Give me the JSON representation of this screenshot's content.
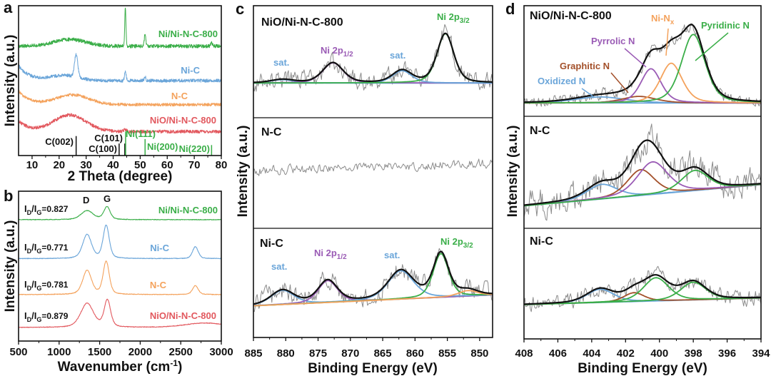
{
  "colors": {
    "green": "#3aae48",
    "blue": "#6aa5d9",
    "orange": "#f4a25c",
    "red": "#e2585e",
    "purple": "#9a5bb5",
    "brown": "#a3502a",
    "gray": "#8c8c8c",
    "black": "#111111"
  },
  "chart_data": [
    {
      "panel": "a",
      "type": "line",
      "xlabel": "2 Theta (degree)",
      "ylabel": "Intensity (a.u.)",
      "xlim": [
        5,
        80
      ],
      "ylim": [
        0,
        10
      ],
      "xticks": [
        10,
        20,
        30,
        40,
        50,
        60,
        70,
        80
      ],
      "series": [
        {
          "name": "Ni/Ni-N-C-800",
          "color": "#3aae48",
          "baseline": 7.3,
          "rise": 0.0,
          "noise": 0.25,
          "seed": 11,
          "peaks": [
            {
              "center": 24,
              "amp": 0.45,
              "width": 6
            },
            {
              "center": 44.5,
              "amp": 2.6,
              "width": 0.22
            },
            {
              "center": 51.8,
              "amp": 0.9,
              "width": 0.25
            },
            {
              "center": 76.4,
              "amp": 0.2,
              "width": 0.3
            }
          ]
        },
        {
          "name": "Ni-C",
          "color": "#6aa5d9",
          "baseline": 5.0,
          "rise": 1.0,
          "noise": 0.22,
          "seed": 23,
          "peaks": [
            {
              "center": 22,
              "amp": 0.35,
              "width": 5
            },
            {
              "center": 26.3,
              "amp": 1.5,
              "width": 0.6
            },
            {
              "center": 44.5,
              "amp": 0.6,
              "width": 0.3
            },
            {
              "center": 51.8,
              "amp": 0.25,
              "width": 0.3
            }
          ]
        },
        {
          "name": "N-C",
          "color": "#f4a25c",
          "baseline": 3.4,
          "rise": 0.9,
          "noise": 0.2,
          "seed": 37,
          "peaks": [
            {
              "center": 25,
              "amp": 0.65,
              "width": 6
            }
          ]
        },
        {
          "name": "NiO/Ni-N-C-800",
          "color": "#e2585e",
          "baseline": 1.6,
          "rise": 0.7,
          "noise": 0.22,
          "seed": 41,
          "peaks": [
            {
              "center": 24,
              "amp": 1.1,
              "width": 6
            },
            {
              "center": 44.5,
              "amp": 0.15,
              "width": 0.5
            }
          ]
        }
      ],
      "reference_lines": [
        {
          "label": "C(002)",
          "position": 26.3,
          "height": 1.3,
          "color": "#111111"
        },
        {
          "label": "C(100)",
          "position": 42.2,
          "height": 0.8,
          "color": "#111111"
        },
        {
          "label": "C(101)",
          "position": 44.3,
          "height": 0.8,
          "color": "#111111"
        },
        {
          "label": "Ni(111)",
          "position": 44.6,
          "height": 1.6,
          "color": "#3aae48"
        },
        {
          "label": "Ni(200)",
          "position": 51.8,
          "height": 1.1,
          "color": "#3aae48"
        },
        {
          "label": "Ni(220)",
          "position": 76.4,
          "height": 0.7,
          "color": "#3aae48"
        }
      ]
    },
    {
      "panel": "b",
      "type": "line",
      "xlabel": "Wavenumber (cm",
      "xlabel_sup": "-1",
      "xlabel_end": ")",
      "ylabel": "Intensity (a.u.)",
      "xlim": [
        500,
        3000
      ],
      "ylim": [
        0,
        10
      ],
      "xticks": [
        500,
        1000,
        1500,
        2000,
        2500,
        3000
      ],
      "band_labels": [
        "D",
        "G"
      ],
      "series": [
        {
          "name": "Ni/Ni-N-C-800",
          "ratio_label": "0.827",
          "color": "#3aae48",
          "baseline": 8.1,
          "noise": 0.04,
          "seed": 5,
          "peaks": [
            {
              "center": 1345,
              "amp": 0.6,
              "width": 75
            },
            {
              "center": 1590,
              "amp": 0.85,
              "width": 40
            }
          ]
        },
        {
          "name": "Ni-C",
          "ratio_label": "0.771",
          "color": "#6aa5d9",
          "baseline": 5.5,
          "noise": 0.04,
          "seed": 6,
          "peaks": [
            {
              "center": 1345,
              "amp": 1.6,
              "width": 55
            },
            {
              "center": 1580,
              "amp": 2.2,
              "width": 38
            },
            {
              "center": 2680,
              "amp": 0.8,
              "width": 35
            }
          ]
        },
        {
          "name": "N-C",
          "ratio_label": "0.781",
          "color": "#f4a25c",
          "baseline": 3.1,
          "noise": 0.04,
          "seed": 7,
          "peaks": [
            {
              "center": 1345,
              "amp": 1.6,
              "width": 55
            },
            {
              "center": 1580,
              "amp": 2.2,
              "width": 38
            },
            {
              "center": 2680,
              "amp": 0.6,
              "width": 35
            }
          ]
        },
        {
          "name": "NiO/Ni-N-C-800",
          "ratio_label": "0.879",
          "color": "#e2585e",
          "baseline": 0.9,
          "noise": 0.04,
          "seed": 8,
          "peaks": [
            {
              "center": 1345,
              "amp": 1.6,
              "width": 80
            },
            {
              "center": 1595,
              "amp": 1.8,
              "width": 40
            },
            {
              "center": 2800,
              "amp": 0.3,
              "width": 250
            }
          ]
        }
      ],
      "ratio_prefix": "I",
      "ratio_sub_d": "D",
      "ratio_sub_g": "G",
      "ratio_eq": "="
    },
    {
      "panel": "c",
      "type": "line",
      "xlabel": "Binding Energy (eV)",
      "ylabel": "Intensity (a.u.)",
      "xlim": [
        885,
        848
      ],
      "ylim": [
        0,
        10
      ],
      "xticks": [
        885,
        880,
        875,
        870,
        865,
        860,
        855,
        850
      ],
      "subplots": [
        {
          "name": "NiO/Ni-N-C-800",
          "background": [
            3.1,
            3.1
          ],
          "background_color": "#6aa5d9",
          "noise": 1.4,
          "seed": 101,
          "components": [
            {
              "name": "sat.",
              "center": 880.5,
              "amp": 0.3,
              "width": 1.8,
              "color": "#6aa5d9"
            },
            {
              "name": "Ni 2p1/2",
              "center": 872.7,
              "amp": 1.8,
              "width": 1.6,
              "color": "#9a5bb5"
            },
            {
              "name": "sat.",
              "center": 862.0,
              "amp": 1.1,
              "width": 1.5,
              "color": "#6aa5d9"
            },
            {
              "name": "Ni 2p3/2",
              "center": 855.3,
              "amp": 4.4,
              "width": 1.3,
              "color": "#3aae48"
            }
          ]
        },
        {
          "name": "N-C",
          "background": [
            5.2,
            5.9
          ],
          "background_color": null,
          "noise": 0.7,
          "seed": 202,
          "components": []
        },
        {
          "name": "Ni-C",
          "background": [
            2.9,
            3.9
          ],
          "background_color": "#f4a25c",
          "noise": 1.6,
          "seed": 303,
          "components": [
            {
              "name": "sat.",
              "center": 880.5,
              "amp": 1.3,
              "width": 1.8,
              "color": "#6aa5d9"
            },
            {
              "name": "Ni 2p1/2",
              "center": 873.5,
              "amp": 2.0,
              "width": 1.5,
              "color": "#9a5bb5"
            },
            {
              "name": "sat.",
              "center": 862.2,
              "amp": 2.6,
              "width": 2.0,
              "color": "#6aa5d9"
            },
            {
              "name": "Ni 2p3/2",
              "center": 856.0,
              "amp": 4.0,
              "width": 1.2,
              "color": "#3aae48"
            },
            {
              "name": "",
              "center": 851.8,
              "amp": 0.5,
              "width": 1.5,
              "color": "#f4a25c"
            }
          ]
        }
      ],
      "labels": {
        "p32_main": "Ni 2p",
        "p32_sub": "3/2",
        "p12_main": "Ni 2p",
        "p12_sub": "1/2",
        "sat": "sat."
      }
    },
    {
      "panel": "d",
      "type": "line",
      "xlabel": "Binding Energy (eV)",
      "ylabel": "Intensity (a.u.)",
      "xlim": [
        408,
        394
      ],
      "ylim": [
        0,
        10
      ],
      "xticks": [
        408,
        406,
        404,
        402,
        400,
        398,
        396,
        394
      ],
      "subplots": [
        {
          "name": "NiO/Ni-N-C-800",
          "background": [
            1.2,
            1.2
          ],
          "noise": 0.9,
          "seed": 404,
          "components": [
            {
              "name": "Oxidized N",
              "center": 403.5,
              "amp": 0.55,
              "width": 1.5,
              "color": "#6aa5d9"
            },
            {
              "name": "Graphitic N",
              "center": 401.2,
              "amp": 0.6,
              "width": 1.0,
              "color": "#a3502a"
            },
            {
              "name": "Pyrrolic N",
              "center": 400.5,
              "amp": 3.1,
              "width": 0.6,
              "color": "#9a5bb5"
            },
            {
              "name": "Ni-Nx",
              "center": 399.3,
              "amp": 3.6,
              "width": 0.65,
              "color": "#f4a25c"
            },
            {
              "name": "Pyridinic N",
              "center": 398.0,
              "amp": 6.2,
              "width": 0.7,
              "color": "#3aae48"
            }
          ]
        },
        {
          "name": "N-C",
          "background": [
            2.0,
            3.9
          ],
          "noise": 2.2,
          "seed": 505,
          "components": [
            {
              "name": "Oxidized N",
              "center": 403.4,
              "amp": 1.3,
              "width": 0.9,
              "color": "#6aa5d9"
            },
            {
              "name": "Graphitic N",
              "center": 401.1,
              "amp": 2.3,
              "width": 0.8,
              "color": "#a3502a"
            },
            {
              "name": "Pyrrolic N",
              "center": 400.4,
              "amp": 2.9,
              "width": 0.9,
              "color": "#9a5bb5"
            },
            {
              "name": "Pyridinic N",
              "center": 397.9,
              "amp": 1.8,
              "width": 0.8,
              "color": "#3aae48"
            }
          ]
        },
        {
          "name": "Ni-C",
          "background": [
            3.1,
            3.7
          ],
          "noise": 1.2,
          "seed": 606,
          "components": [
            {
              "name": "Oxidized N",
              "center": 403.5,
              "amp": 1.2,
              "width": 0.8,
              "color": "#6aa5d9"
            },
            {
              "name": "Graphitic N",
              "center": 401.5,
              "amp": 0.8,
              "width": 0.6,
              "color": "#a3502a"
            },
            {
              "name": "Pyridinic N",
              "center": 400.2,
              "amp": 2.1,
              "width": 0.75,
              "color": "#3aae48"
            },
            {
              "name": "Pyridinic N",
              "center": 398.0,
              "amp": 1.6,
              "width": 0.75,
              "color": "#3aae48"
            }
          ]
        }
      ],
      "labels": {
        "nix_main": "Ni-N",
        "nix_sub": "x",
        "pyridinic": "Pyridinic N",
        "pyrrolic": "Pyrrolic N",
        "graphitic": "Graphitic N",
        "oxidized": "Oxidized N"
      }
    }
  ]
}
